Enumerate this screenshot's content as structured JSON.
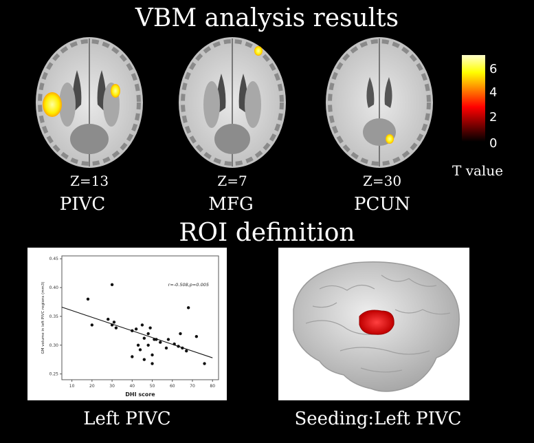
{
  "title": "VBM analysis results",
  "brains": [
    {
      "z_label": "Z=13",
      "region": "PIVC"
    },
    {
      "z_label": "Z=7",
      "region": "MFG"
    },
    {
      "z_label": "Z=30",
      "region": "PCUN"
    }
  ],
  "colorbar": {
    "ticks": [
      "6",
      "4",
      "2",
      "0"
    ],
    "label": "T value",
    "colors": [
      "#ffffcc",
      "#ffff00",
      "#ff8000",
      "#ff0000",
      "#800000",
      "#000000"
    ]
  },
  "roi_title": "ROI definition",
  "scatter_caption": "Left PIVC",
  "seed_caption": "Seeding:Left PIVC",
  "chart_data": {
    "type": "scatter",
    "xlabel": "DHI score",
    "ylabel": "GM volume in left PIVC regions (mm3)",
    "annotation": "r=-0.508,p=0.005",
    "xlim": [
      5,
      83
    ],
    "ylim": [
      0.24,
      0.455
    ],
    "xticks": [
      "10",
      "20",
      "30",
      "40",
      "50",
      "60",
      "70",
      "80"
    ],
    "yticks": [
      "0.25",
      "0.30",
      "0.35",
      "0.40",
      "0.45"
    ],
    "x": [
      18,
      20,
      28,
      30,
      30,
      31,
      32,
      40,
      40,
      42,
      43,
      44,
      45,
      46,
      46,
      48,
      48,
      49,
      50,
      50,
      51,
      52,
      54,
      57,
      58,
      61,
      63,
      64,
      65,
      67,
      68,
      72,
      76
    ],
    "y": [
      0.38,
      0.335,
      0.345,
      0.405,
      0.335,
      0.34,
      0.33,
      0.325,
      0.28,
      0.328,
      0.3,
      0.292,
      0.335,
      0.312,
      0.275,
      0.32,
      0.3,
      0.33,
      0.283,
      0.268,
      0.31,
      0.31,
      0.305,
      0.295,
      0.31,
      0.302,
      0.298,
      0.32,
      0.295,
      0.29,
      0.365,
      0.315,
      0.268
    ],
    "fit": {
      "x": [
        5,
        80
      ],
      "y": [
        0.366,
        0.278
      ]
    }
  }
}
